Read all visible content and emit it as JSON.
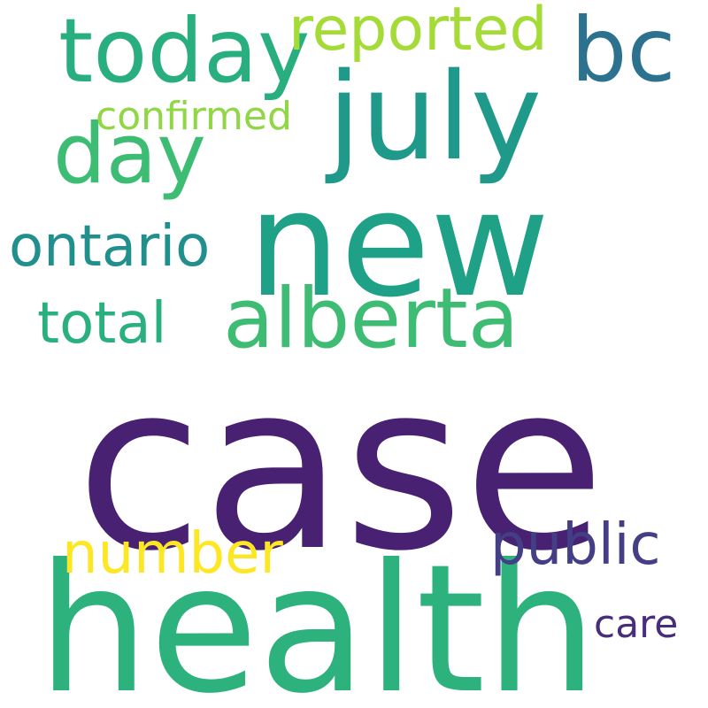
{
  "words": {
    "case": {
      "text": "case",
      "color": "#482173"
    },
    "health": {
      "text": "health",
      "color": "#2db27d"
    },
    "new": {
      "text": "new",
      "color": "#1fa187"
    },
    "july": {
      "text": "july",
      "color": "#1f9a8a"
    },
    "today": {
      "text": "today",
      "color": "#29af7f"
    },
    "bc": {
      "text": "bc",
      "color": "#2c728e"
    },
    "alberta": {
      "text": "alberta",
      "color": "#3fbc73"
    },
    "day": {
      "text": "day",
      "color": "#3dbc74"
    },
    "reported": {
      "text": "reported",
      "color": "#a5db36"
    },
    "ontario": {
      "text": "ontario",
      "color": "#21908c"
    },
    "public": {
      "text": "public",
      "color": "#433e85"
    },
    "total": {
      "text": "total",
      "color": "#2ab07f"
    },
    "number": {
      "text": "number",
      "color": "#fde725"
    },
    "confirmed": {
      "text": "confirmed",
      "color": "#8fd744"
    },
    "care": {
      "text": "care",
      "color": "#472d7b"
    }
  }
}
